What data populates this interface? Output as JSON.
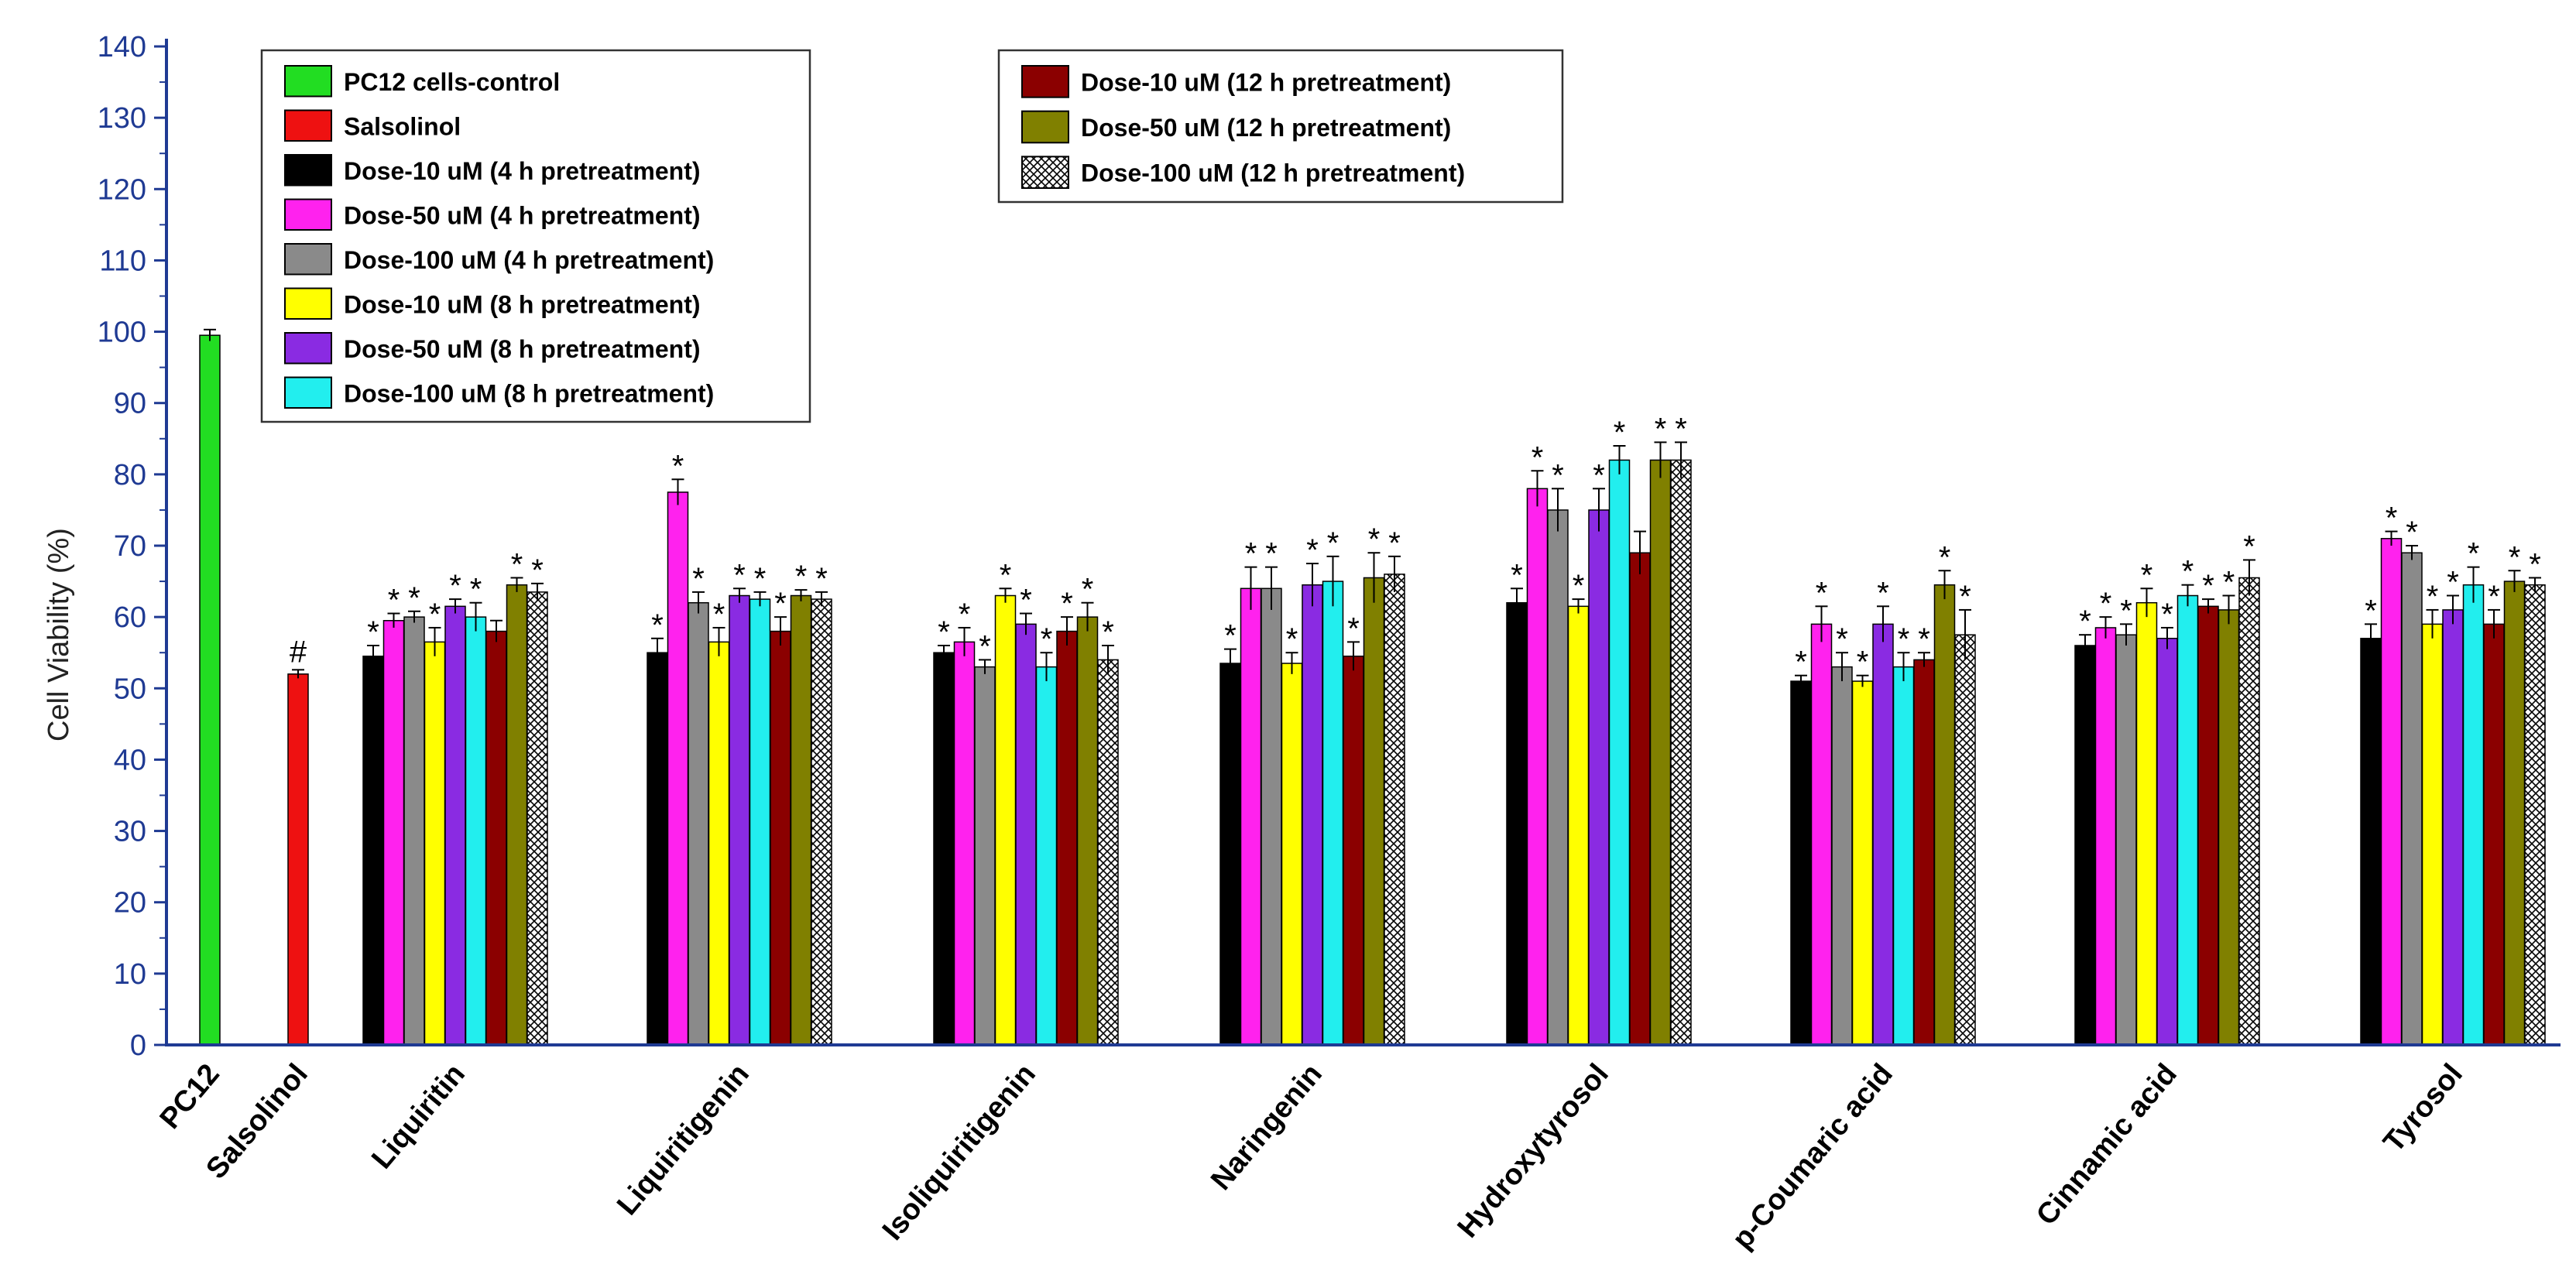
{
  "chart_data": {
    "type": "bar",
    "title": "",
    "xlabel": "",
    "ylabel": "Cell Viability (%)",
    "ylim": [
      0,
      140
    ],
    "yticks": [
      0,
      10,
      20,
      30,
      40,
      50,
      60,
      70,
      80,
      90,
      100,
      110,
      120,
      130,
      140
    ],
    "groups": [
      {
        "name": "PC12",
        "bars": [
          {
            "series": 0,
            "value": 99.5,
            "err": 0.8,
            "mark": ""
          }
        ]
      },
      {
        "name": "Salsolinol",
        "bars": [
          {
            "series": 1,
            "value": 52,
            "err": 0.6,
            "mark": "#"
          }
        ]
      },
      {
        "name": "Liquiritin",
        "bars": [
          {
            "series": 2,
            "value": 54.5,
            "err": 1.5,
            "mark": "*"
          },
          {
            "series": 3,
            "value": 59.5,
            "err": 1.0,
            "mark": "*"
          },
          {
            "series": 4,
            "value": 60,
            "err": 0.8,
            "mark": "*"
          },
          {
            "series": 5,
            "value": 56.5,
            "err": 2.0,
            "mark": "*"
          },
          {
            "series": 6,
            "value": 61.5,
            "err": 1.0,
            "mark": "*"
          },
          {
            "series": 7,
            "value": 60,
            "err": 2.0,
            "mark": "*"
          },
          {
            "series": 8,
            "value": 58,
            "err": 1.5,
            "mark": ""
          },
          {
            "series": 9,
            "value": 64.5,
            "err": 1.0,
            "mark": "*"
          },
          {
            "series": 10,
            "value": 63.5,
            "err": 1.2,
            "mark": "*"
          }
        ]
      },
      {
        "name": "Liquiritigenin",
        "bars": [
          {
            "series": 2,
            "value": 55,
            "err": 2.0,
            "mark": "*"
          },
          {
            "series": 3,
            "value": 77.5,
            "err": 1.8,
            "mark": "*"
          },
          {
            "series": 4,
            "value": 62,
            "err": 1.5,
            "mark": "*"
          },
          {
            "series": 5,
            "value": 56.5,
            "err": 2.0,
            "mark": "*"
          },
          {
            "series": 6,
            "value": 63,
            "err": 1.0,
            "mark": "*"
          },
          {
            "series": 7,
            "value": 62.5,
            "err": 1.0,
            "mark": "*"
          },
          {
            "series": 8,
            "value": 58,
            "err": 2.0,
            "mark": "*"
          },
          {
            "series": 9,
            "value": 63,
            "err": 0.8,
            "mark": "*"
          },
          {
            "series": 10,
            "value": 62.5,
            "err": 1.0,
            "mark": "*"
          }
        ]
      },
      {
        "name": "Isoliquiritigenin",
        "bars": [
          {
            "series": 2,
            "value": 55,
            "err": 1.0,
            "mark": "*"
          },
          {
            "series": 3,
            "value": 56.5,
            "err": 2.0,
            "mark": "*"
          },
          {
            "series": 4,
            "value": 53,
            "err": 1.0,
            "mark": "*"
          },
          {
            "series": 5,
            "value": 63,
            "err": 1.0,
            "mark": "*"
          },
          {
            "series": 6,
            "value": 59,
            "err": 1.5,
            "mark": "*"
          },
          {
            "series": 7,
            "value": 53,
            "err": 2.0,
            "mark": "*"
          },
          {
            "series": 8,
            "value": 58,
            "err": 2.0,
            "mark": "*"
          },
          {
            "series": 9,
            "value": 60,
            "err": 2.0,
            "mark": "*"
          },
          {
            "series": 10,
            "value": 54,
            "err": 2.0,
            "mark": "*"
          }
        ]
      },
      {
        "name": "Naringenin",
        "bars": [
          {
            "series": 2,
            "value": 53.5,
            "err": 2.0,
            "mark": "*"
          },
          {
            "series": 3,
            "value": 64,
            "err": 3.0,
            "mark": "*"
          },
          {
            "series": 4,
            "value": 64,
            "err": 3.0,
            "mark": "*"
          },
          {
            "series": 5,
            "value": 53.5,
            "err": 1.5,
            "mark": "*"
          },
          {
            "series": 6,
            "value": 64.5,
            "err": 3.0,
            "mark": "*"
          },
          {
            "series": 7,
            "value": 65,
            "err": 3.5,
            "mark": "*"
          },
          {
            "series": 8,
            "value": 54.5,
            "err": 2.0,
            "mark": "*"
          },
          {
            "series": 9,
            "value": 65.5,
            "err": 3.5,
            "mark": "*"
          },
          {
            "series": 10,
            "value": 66,
            "err": 2.5,
            "mark": "*"
          }
        ]
      },
      {
        "name": "Hydroxytyrosol",
        "bars": [
          {
            "series": 2,
            "value": 62,
            "err": 2.0,
            "mark": "*"
          },
          {
            "series": 3,
            "value": 78,
            "err": 2.5,
            "mark": "*"
          },
          {
            "series": 4,
            "value": 75,
            "err": 3.0,
            "mark": "*"
          },
          {
            "series": 5,
            "value": 61.5,
            "err": 1.0,
            "mark": "*"
          },
          {
            "series": 6,
            "value": 75,
            "err": 3.0,
            "mark": "*"
          },
          {
            "series": 7,
            "value": 82,
            "err": 2.0,
            "mark": "*"
          },
          {
            "series": 8,
            "value": 69,
            "err": 3.0,
            "mark": ""
          },
          {
            "series": 9,
            "value": 82,
            "err": 2.5,
            "mark": "*"
          },
          {
            "series": 10,
            "value": 82,
            "err": 2.5,
            "mark": "*"
          }
        ]
      },
      {
        "name": "p-Coumaric acid",
        "bars": [
          {
            "series": 2,
            "value": 51,
            "err": 0.8,
            "mark": "*"
          },
          {
            "series": 3,
            "value": 59,
            "err": 2.5,
            "mark": "*"
          },
          {
            "series": 4,
            "value": 53,
            "err": 2.0,
            "mark": "*"
          },
          {
            "series": 5,
            "value": 51,
            "err": 0.8,
            "mark": "*"
          },
          {
            "series": 6,
            "value": 59,
            "err": 2.5,
            "mark": "*"
          },
          {
            "series": 7,
            "value": 53,
            "err": 2.0,
            "mark": "*"
          },
          {
            "series": 8,
            "value": 54,
            "err": 1.0,
            "mark": "*"
          },
          {
            "series": 9,
            "value": 64.5,
            "err": 2.0,
            "mark": "*"
          },
          {
            "series": 10,
            "value": 57.5,
            "err": 3.5,
            "mark": "*"
          }
        ]
      },
      {
        "name": "Cinnamic acid",
        "bars": [
          {
            "series": 2,
            "value": 56,
            "err": 1.5,
            "mark": "*"
          },
          {
            "series": 3,
            "value": 58.5,
            "err": 1.5,
            "mark": "*"
          },
          {
            "series": 4,
            "value": 57.5,
            "err": 1.5,
            "mark": "*"
          },
          {
            "series": 5,
            "value": 62,
            "err": 2.0,
            "mark": "*"
          },
          {
            "series": 6,
            "value": 57,
            "err": 1.5,
            "mark": "*"
          },
          {
            "series": 7,
            "value": 63,
            "err": 1.5,
            "mark": "*"
          },
          {
            "series": 8,
            "value": 61.5,
            "err": 1.0,
            "mark": "*"
          },
          {
            "series": 9,
            "value": 61,
            "err": 2.0,
            "mark": "*"
          },
          {
            "series": 10,
            "value": 65.5,
            "err": 2.5,
            "mark": "*"
          }
        ]
      },
      {
        "name": "Tyrosol",
        "bars": [
          {
            "series": 2,
            "value": 57,
            "err": 2.0,
            "mark": "*"
          },
          {
            "series": 3,
            "value": 71,
            "err": 1.0,
            "mark": "*"
          },
          {
            "series": 4,
            "value": 69,
            "err": 1.0,
            "mark": "*"
          },
          {
            "series": 5,
            "value": 59,
            "err": 2.0,
            "mark": "*"
          },
          {
            "series": 6,
            "value": 61,
            "err": 2.0,
            "mark": "*"
          },
          {
            "series": 7,
            "value": 64.5,
            "err": 2.5,
            "mark": "*"
          },
          {
            "series": 8,
            "value": 59,
            "err": 2.0,
            "mark": "*"
          },
          {
            "series": 9,
            "value": 65,
            "err": 1.5,
            "mark": "*"
          },
          {
            "series": 10,
            "value": 64.5,
            "err": 1.0,
            "mark": "*"
          }
        ]
      }
    ],
    "series": [
      {
        "name": "PC12 cells-control",
        "color": "#22dd22",
        "pattern": false
      },
      {
        "name": "Salsolinol",
        "color": "#ee1111",
        "pattern": false
      },
      {
        "name": "Dose-10 uM (4 h pretreatment)",
        "color": "#000000",
        "pattern": false
      },
      {
        "name": "Dose-50 uM (4 h pretreatment)",
        "color": "#ff22ee",
        "pattern": false
      },
      {
        "name": "Dose-100 uM (4 h pretreatment)",
        "color": "#8a8a8a",
        "pattern": false
      },
      {
        "name": "Dose-10 uM (8 h pretreatment)",
        "color": "#ffff00",
        "pattern": false
      },
      {
        "name": "Dose-50 uM (8 h pretreatment)",
        "color": "#8a2be2",
        "pattern": false
      },
      {
        "name": "Dose-100 uM (8 h pretreatment)",
        "color": "#22eeee",
        "pattern": false
      },
      {
        "name": "Dose-10 uM (12 h pretreatment)",
        "color": "#8b0000",
        "pattern": false
      },
      {
        "name": "Dose-50 uM (12 h pretreatment)",
        "color": "#808000",
        "pattern": false
      },
      {
        "name": "Dose-100 uM (12 h pretreatment)",
        "color": "#ffffff",
        "pattern": true
      }
    ],
    "legends": [
      {
        "position": "top-left",
        "series": [
          0,
          1,
          2,
          3,
          4,
          5,
          6,
          7
        ]
      },
      {
        "position": "top-center",
        "series": [
          8,
          9,
          10
        ]
      }
    ],
    "axis_color": "#1f3a93"
  }
}
